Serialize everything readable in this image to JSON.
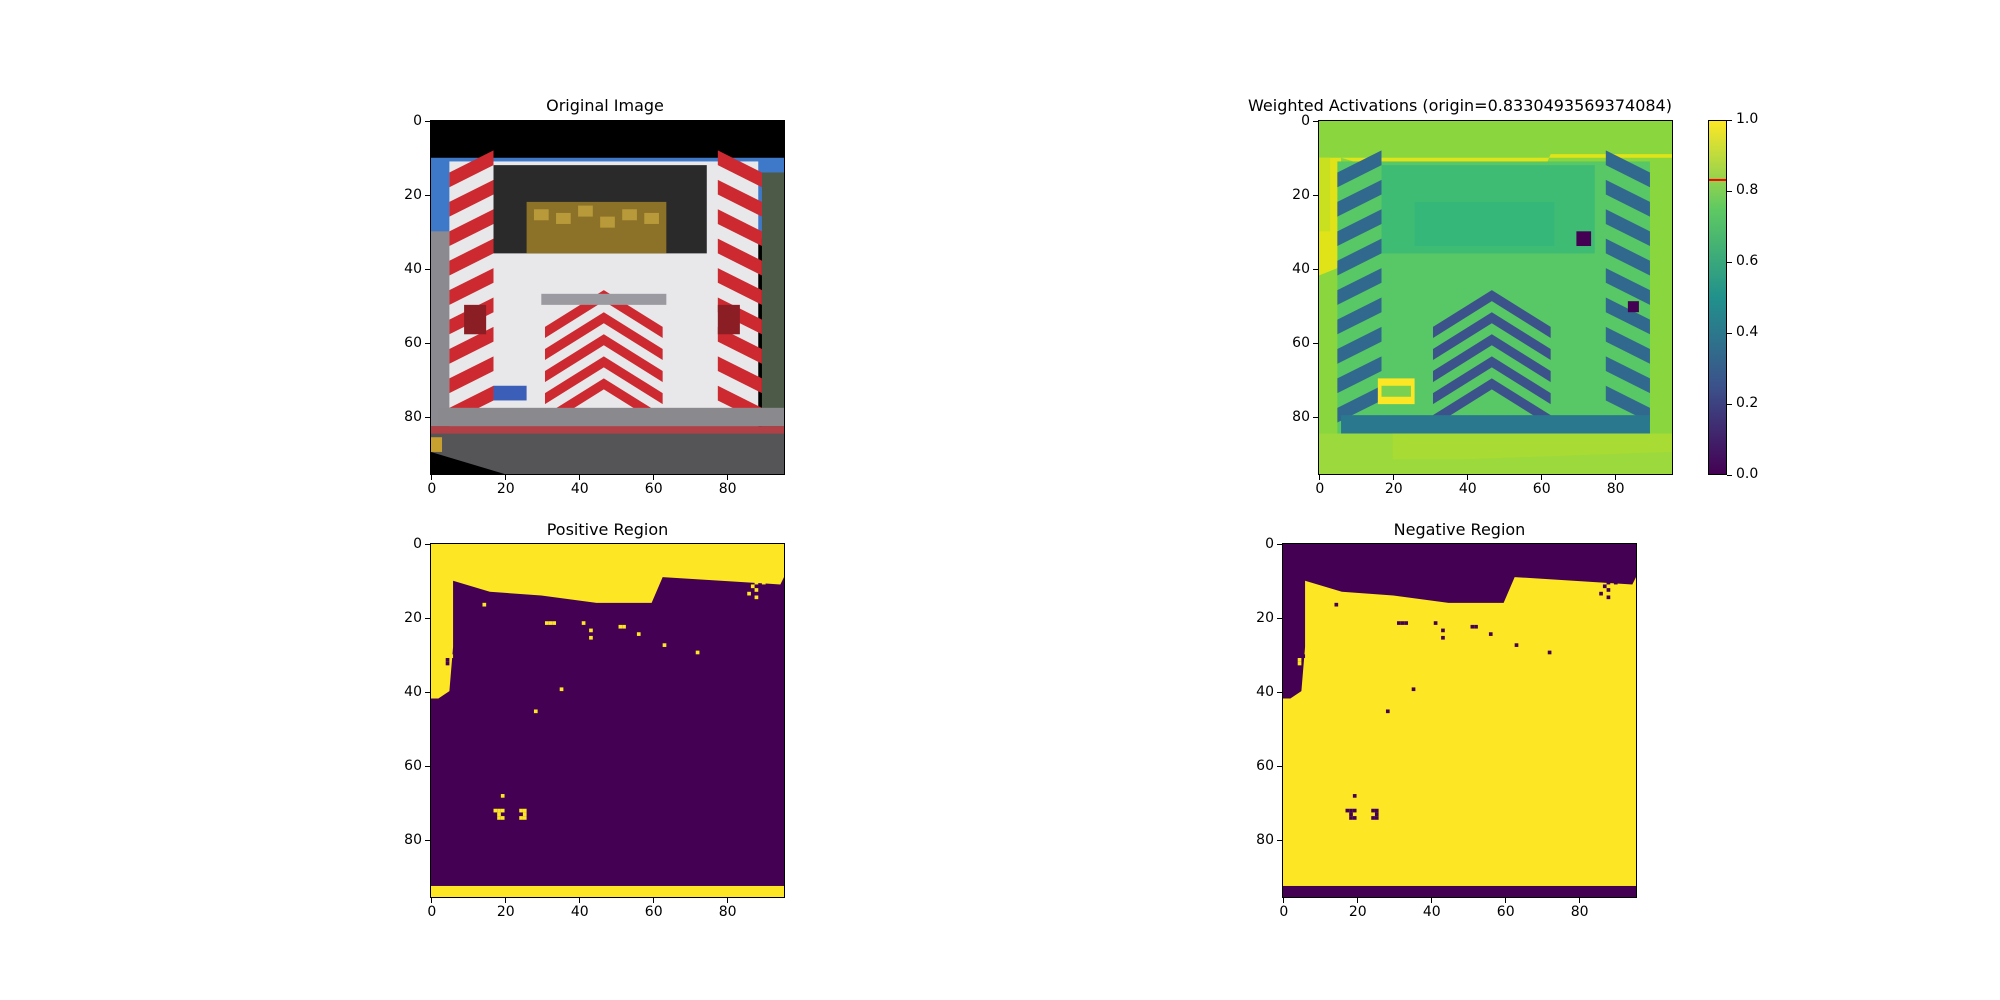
{
  "chart_data": [
    {
      "type": "heatmap",
      "id": "original",
      "title": "Original Image",
      "x_ticks": [
        0,
        20,
        40,
        60,
        80
      ],
      "y_ticks": [
        0,
        20,
        40,
        60,
        80
      ],
      "xlim": [
        0,
        96
      ],
      "ylim": [
        96,
        0
      ],
      "colors": {
        "black": "#000000",
        "sky": "#3e78c8",
        "white": "#e8e8ea",
        "red": "#cc2a30",
        "gold": "#8c7128",
        "dark": "#2a2a2a",
        "road": "#555558"
      }
    },
    {
      "type": "heatmap",
      "id": "weighted",
      "title": "Weighted Activations (origin=0.8330493569374084)",
      "x_ticks": [
        0,
        20,
        40,
        60,
        80
      ],
      "y_ticks": [
        0,
        20,
        40,
        60,
        80
      ],
      "xlim": [
        0,
        96
      ],
      "ylim": [
        96,
        0
      ],
      "colorbar": {
        "ticks": [
          "0.0",
          "0.2",
          "0.4",
          "0.6",
          "0.8",
          "1.0"
        ],
        "range": [
          0,
          1
        ],
        "marker_value": 0.8330493569374084,
        "marker_color": "#ff0000",
        "colormap": "viridis"
      }
    },
    {
      "type": "heatmap",
      "id": "positive",
      "title": "Positive Region",
      "x_ticks": [
        0,
        20,
        40,
        60,
        80
      ],
      "y_ticks": [
        0,
        20,
        40,
        60,
        80
      ],
      "xlim": [
        0,
        96
      ],
      "ylim": [
        96,
        0
      ],
      "colors": {
        "on": "#fde725",
        "off": "#440154"
      }
    },
    {
      "type": "heatmap",
      "id": "negative",
      "title": "Negative Region",
      "x_ticks": [
        0,
        20,
        40,
        60,
        80
      ],
      "y_ticks": [
        0,
        20,
        40,
        60,
        80
      ],
      "xlim": [
        0,
        96
      ],
      "ylim": [
        96,
        0
      ],
      "colors": {
        "on": "#fde725",
        "off": "#440154"
      }
    }
  ]
}
